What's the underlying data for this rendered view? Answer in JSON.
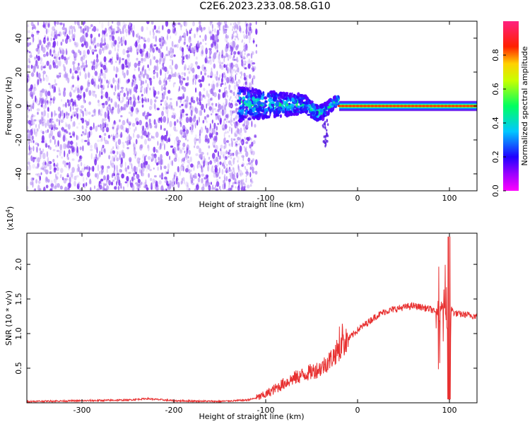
{
  "title": "C2E6.2023.233.08.58.G10",
  "colors": {
    "spectrogram_base": "#7a2cf0",
    "snr_line": "#e83030",
    "axis": "#000000"
  },
  "colorbar": {
    "label": "Normalized spectral amplitude",
    "range": [
      0,
      1
    ],
    "ticks": [
      "0.0",
      "0.2",
      "0.4",
      "0.6",
      "0.8"
    ],
    "tick_values": [
      0.0,
      0.2,
      0.4,
      0.6,
      0.8
    ],
    "colormap": "rainbow (magenta-blue-cyan-green-yellow-red-pink)"
  },
  "chart_data": [
    {
      "type": "heatmap",
      "name": "spectrogram",
      "xlabel": "Height of straight line (km)",
      "ylabel": "Frequency (Hz)",
      "xlim": [
        -360,
        130
      ],
      "ylim": [
        -50,
        50
      ],
      "x_ticks": [
        -300,
        -200,
        -100,
        0,
        100
      ],
      "x_tick_labels": [
        "-300",
        "-200",
        "-100",
        "0",
        "100"
      ],
      "y_ticks": [
        -40,
        -20,
        0,
        20,
        40
      ],
      "y_tick_labels": [
        "-40",
        "-20",
        "0",
        "20",
        "40"
      ],
      "regions": [
        {
          "x_range": [
            -360,
            -130
          ],
          "y_range": [
            -50,
            50
          ],
          "amplitude": 0.1
        },
        {
          "x_range": [
            -130,
            -20
          ],
          "y_range": [
            -10,
            10
          ],
          "amplitude": 0.4
        },
        {
          "x_range": [
            -20,
            130
          ],
          "y_range": [
            -1,
            1
          ],
          "amplitude": 0.9
        }
      ],
      "grid": false
    },
    {
      "type": "line",
      "name": "snr",
      "xlabel": "Height of straight line (km)",
      "ylabel": "SNR (10 * v/v)",
      "multiplier_label": "(x10",
      "multiplier_exp": "4",
      "multiplier_close": ")",
      "xlim": [
        -360,
        130
      ],
      "ylim": [
        0,
        2.45
      ],
      "x_ticks": [
        -300,
        -200,
        -100,
        0,
        100
      ],
      "x_tick_labels": [
        "-300",
        "-200",
        "-100",
        "0",
        "100"
      ],
      "y_ticks": [
        0.5,
        1.0,
        1.5,
        2.0
      ],
      "y_tick_labels": [
        "0.5",
        "1.0",
        "1.5",
        "2.0"
      ],
      "series": [
        {
          "x": [
            -360,
            -300,
            -250,
            -230,
            -200,
            -150,
            -120,
            -110,
            -100,
            -90,
            -80,
            -70,
            -60,
            -50,
            -40,
            -30,
            -20,
            -10,
            0,
            10,
            20,
            30,
            40,
            50,
            60,
            70,
            80,
            85,
            90,
            95,
            98,
            100,
            105,
            110,
            120,
            130
          ],
          "y": [
            0.02,
            0.03,
            0.04,
            0.06,
            0.03,
            0.02,
            0.04,
            0.07,
            0.12,
            0.2,
            0.28,
            0.35,
            0.4,
            0.45,
            0.5,
            0.62,
            0.78,
            0.92,
            1.05,
            1.15,
            1.25,
            1.32,
            1.35,
            1.38,
            1.4,
            1.38,
            1.35,
            1.3,
            1.35,
            1.4,
            1.0,
            1.4,
            1.3,
            1.28,
            1.27,
            1.25
          ],
          "noise": 0.06
        }
      ],
      "grid": false
    }
  ]
}
